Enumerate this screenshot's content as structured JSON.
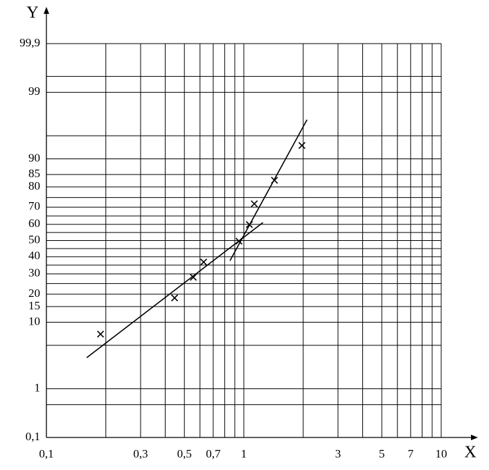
{
  "chart_data": {
    "type": "scatter",
    "x_label": "X",
    "y_label": "Y",
    "x_scale": "log",
    "y_scale": "probability",
    "x": [
      0.188,
      0.446,
      0.555,
      0.626,
      0.945,
      1.067,
      1.13,
      1.43,
      1.97
    ],
    "values": [
      7.1,
      18.4,
      28.2,
      36.8,
      49.6,
      59.9,
      71.8,
      82.8,
      93.2
    ],
    "color": "#000000",
    "marker": "x",
    "fit_lines": [
      {
        "x": [
          0.16,
          1.25
        ],
        "y": [
          3.3,
          61.1
        ]
      },
      {
        "x": [
          0.851,
          2.09
        ],
        "y": [
          37.6,
          97.1
        ]
      }
    ],
    "xlim": [
      0.1,
      10
    ],
    "ylim": [
      0.1,
      99.9
    ],
    "xticks": [
      {
        "value": 0.1,
        "label": "0,1"
      },
      {
        "value": 0.3,
        "label": "0,3"
      },
      {
        "value": 0.5,
        "label": "0,5"
      },
      {
        "value": 0.7,
        "label": "0,7"
      },
      1,
      3,
      5,
      7,
      10
    ],
    "yticks": [
      {
        "value": 0.1,
        "label": "0,1"
      },
      1,
      10,
      15,
      20,
      30,
      40,
      50,
      60,
      70,
      80,
      85,
      90,
      99,
      {
        "value": 99.9,
        "label": "99,9"
      }
    ],
    "x_minor_gridlines": [
      0.2,
      0.4,
      0.6,
      0.8,
      0.9,
      2,
      4,
      6,
      8,
      9
    ],
    "y_minor_gridlines": [
      0.5,
      5,
      25,
      35,
      45,
      55,
      65,
      75,
      95,
      99.5
    ],
    "grid": true
  }
}
